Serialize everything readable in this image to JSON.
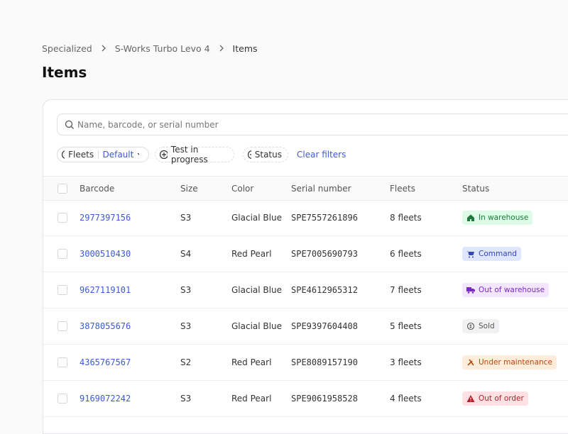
{
  "breadcrumb": [
    "Specialized",
    "S-Works Turbo Levo 4",
    "Items"
  ],
  "title": "Items",
  "search": {
    "placeholder": "Name, barcode, or serial number"
  },
  "filters": {
    "fleets": {
      "label": "Fleets",
      "value": "Default"
    },
    "test": "Test in progress",
    "status": "Status",
    "clear": "Clear filters"
  },
  "table": {
    "columns": [
      "Barcode",
      "Size",
      "Color",
      "Serial number",
      "Fleets",
      "Status"
    ],
    "rows": [
      [
        "2977397156",
        "S3",
        "Glacial Blue",
        "SPE7557261896",
        "8 fleets",
        "In warehouse"
      ],
      [
        "3000510430",
        "S4",
        "Red Pearl",
        "SPE7005690793",
        "6 fleets",
        "Command"
      ],
      [
        "9627119101",
        "S3",
        "Glacial Blue",
        "SPE4612965312",
        "7 fleets",
        "Out of warehouse"
      ],
      [
        "3878055676",
        "S3",
        "Glacial Blue",
        "SPE9397604408",
        "5 fleets",
        "Sold"
      ],
      [
        "4365767567",
        "S2",
        "Red Pearl",
        "SPE8089157190",
        "3 fleets",
        "Under maintenance"
      ],
      [
        "9169072242",
        "S3",
        "Red Pearl",
        "SPE9061958528",
        "4 fleets",
        "Out of order"
      ]
    ]
  }
}
